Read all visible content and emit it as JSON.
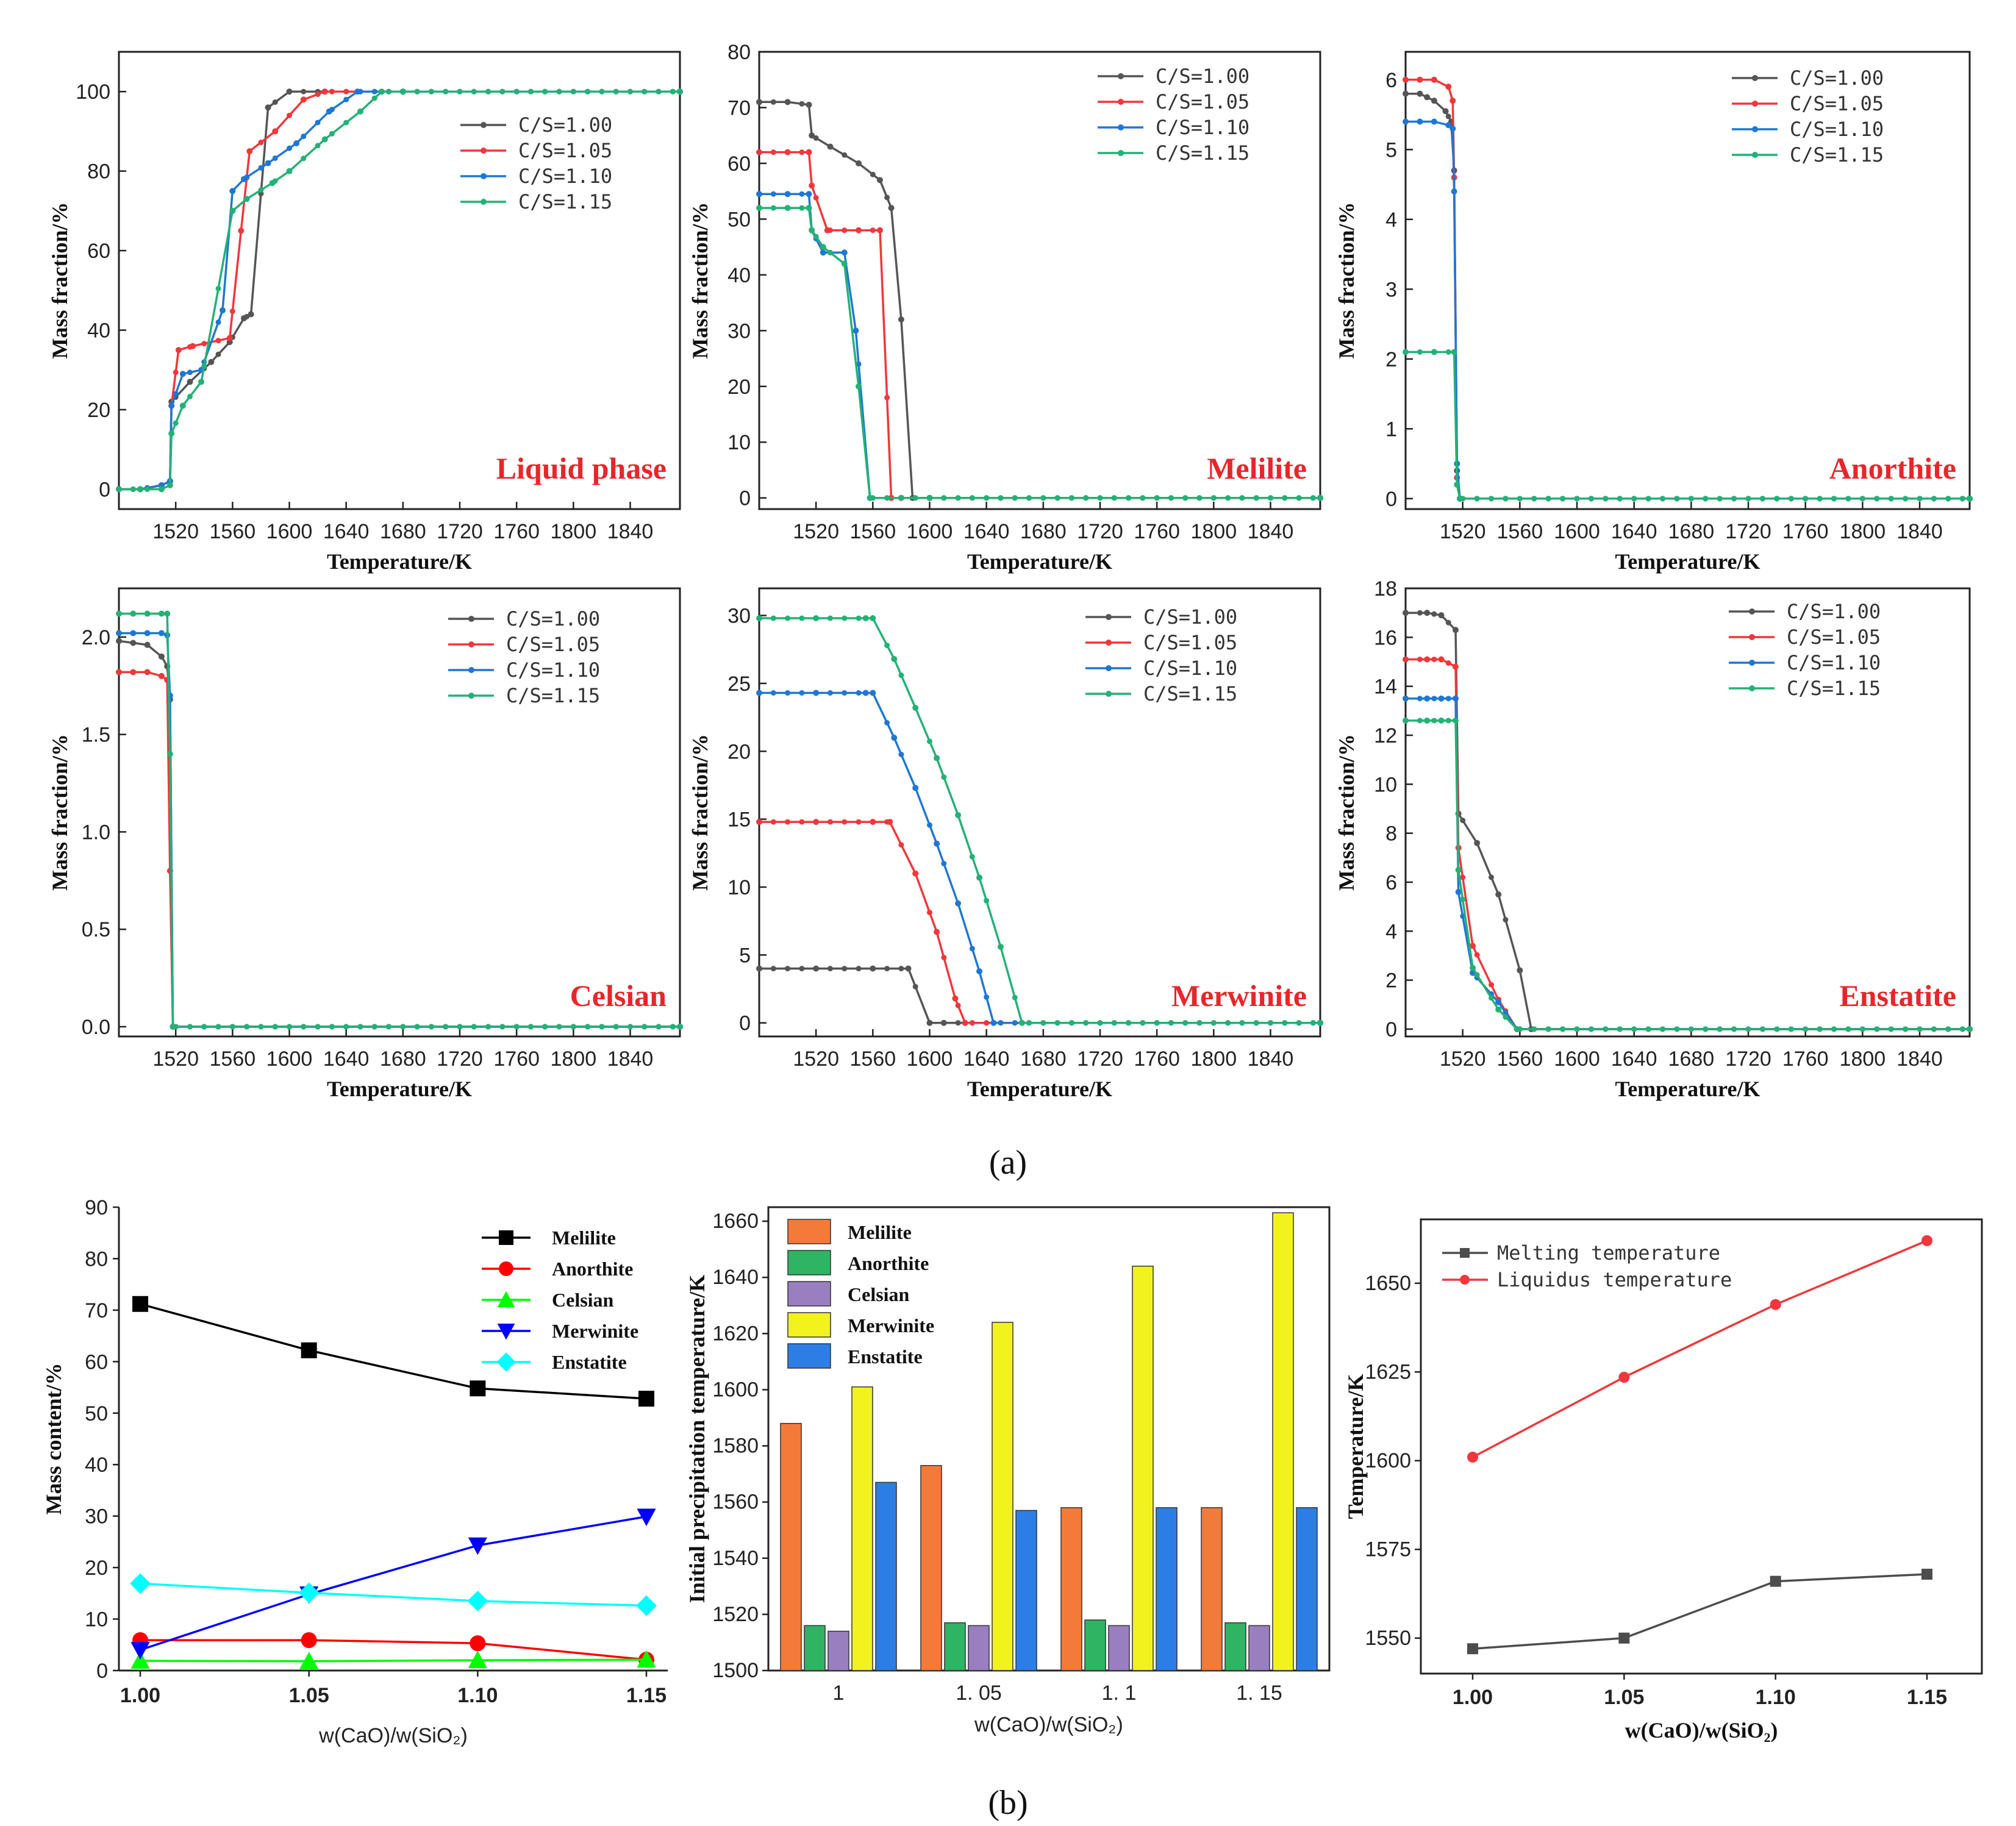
{
  "captions": {
    "a": "(a)",
    "b": "(b)"
  },
  "colors": {
    "s1": "#555555",
    "s2": "#f0373b",
    "s3": "#1f77d4",
    "s4": "#23b176"
  },
  "chart_data": [
    {
      "id": "liquid",
      "type": "line",
      "label": "Liquid phase",
      "xlabel": "Temperature/K",
      "ylabel": "Mass fraction/%",
      "xlim": [
        1480,
        1875
      ],
      "ylim": [
        -5,
        110
      ],
      "xticks": [
        "1520",
        "1560",
        "1600",
        "1640",
        "1680",
        "1720",
        "1760",
        "1800",
        "1840"
      ],
      "yticks": [
        "0",
        "20",
        "40",
        "60",
        "80",
        "100"
      ],
      "series": [
        {
          "name": "C/S=1.00",
          "x": [
            1480,
            1495,
            1510,
            1516,
            1517,
            1530,
            1545,
            1558,
            1568,
            1573,
            1585,
            1600,
            1625,
            1680,
            1875
          ],
          "y": [
            0,
            0,
            1,
            2,
            22,
            27,
            32,
            37,
            43,
            44,
            96,
            100,
            100,
            100,
            100
          ]
        },
        {
          "name": "C/S=1.05",
          "x": [
            1480,
            1495,
            1510,
            1516,
            1517,
            1522,
            1532,
            1558,
            1566,
            1572,
            1590,
            1610,
            1625,
            1680,
            1875
          ],
          "y": [
            0,
            0,
            1,
            2,
            21,
            35,
            36,
            38,
            65,
            85,
            90,
            98,
            100,
            100,
            100
          ]
        },
        {
          "name": "C/S=1.10",
          "x": [
            1480,
            1495,
            1510,
            1516,
            1517,
            1525,
            1538,
            1553,
            1560,
            1568,
            1585,
            1605,
            1628,
            1648,
            1680,
            1875
          ],
          "y": [
            0,
            0,
            1,
            2,
            21,
            29,
            30,
            45,
            75,
            78,
            82,
            87,
            95,
            100,
            100,
            100
          ]
        },
        {
          "name": "C/S=1.15",
          "x": [
            1480,
            1495,
            1510,
            1516,
            1517,
            1525,
            1538,
            1560,
            1570,
            1588,
            1600,
            1625,
            1650,
            1665,
            1680,
            1875
          ],
          "y": [
            0,
            0,
            0,
            1,
            14,
            21,
            27,
            70,
            73,
            77,
            80,
            88,
            95,
            100,
            100,
            100
          ]
        }
      ]
    },
    {
      "id": "melilite",
      "type": "line",
      "label": "Melilite",
      "xlabel": "Temperature/K",
      "ylabel": "Mass fraction/%",
      "xlim": [
        1480,
        1875
      ],
      "ylim": [
        -2,
        80
      ],
      "xticks": [
        "1520",
        "1560",
        "1600",
        "1640",
        "1680",
        "1720",
        "1760",
        "1800",
        "1840"
      ],
      "yticks": [
        "0",
        "10",
        "20",
        "30",
        "40",
        "50",
        "60",
        "70",
        "80"
      ],
      "series": [
        {
          "name": "C/S=1.00",
          "x": [
            1480,
            1500,
            1515,
            1517,
            1530,
            1550,
            1565,
            1573,
            1580,
            1588,
            1600,
            1875
          ],
          "y": [
            71,
            71,
            70.5,
            65,
            63,
            60,
            57,
            52,
            32,
            0,
            0,
            0
          ]
        },
        {
          "name": "C/S=1.05",
          "x": [
            1480,
            1500,
            1515,
            1517,
            1528,
            1550,
            1565,
            1573,
            1580,
            1875
          ],
          "y": [
            62,
            62,
            62,
            56,
            48,
            48,
            48,
            0,
            0,
            0
          ]
        },
        {
          "name": "C/S=1.10",
          "x": [
            1480,
            1500,
            1515,
            1517,
            1525,
            1540,
            1548,
            1558,
            1875
          ],
          "y": [
            54.5,
            54.5,
            54.5,
            48,
            44,
            44,
            30,
            0,
            0
          ]
        },
        {
          "name": "C/S=1.15",
          "x": [
            1480,
            1500,
            1515,
            1517,
            1525,
            1540,
            1550,
            1558,
            1875
          ],
          "y": [
            52,
            52,
            52,
            48,
            45,
            42,
            20,
            0,
            0
          ]
        }
      ]
    },
    {
      "id": "anorthite",
      "type": "line",
      "label": "Anorthite",
      "xlabel": "Temperature/K",
      "ylabel": "Mass fraction/%",
      "xlim": [
        1480,
        1875
      ],
      "ylim": [
        -0.15,
        6.4
      ],
      "xticks": [
        "1520",
        "1560",
        "1600",
        "1640",
        "1680",
        "1720",
        "1760",
        "1800",
        "1840"
      ],
      "yticks": [
        "0",
        "1",
        "2",
        "3",
        "4",
        "5",
        "6"
      ],
      "series": [
        {
          "name": "C/S=1.00",
          "x": [
            1480,
            1490,
            1495,
            1500,
            1508,
            1512,
            1514,
            1516,
            1518,
            1875
          ],
          "y": [
            5.8,
            5.8,
            5.75,
            5.7,
            5.55,
            5.4,
            4.7,
            0.4,
            0,
            0
          ]
        },
        {
          "name": "C/S=1.05",
          "x": [
            1480,
            1490,
            1500,
            1510,
            1513,
            1514,
            1516,
            1518,
            1875
          ],
          "y": [
            6,
            6,
            6,
            5.9,
            5.7,
            4.6,
            0.3,
            0,
            0
          ]
        },
        {
          "name": "C/S=1.10",
          "x": [
            1480,
            1490,
            1500,
            1510,
            1513,
            1514,
            1516,
            1518,
            1875
          ],
          "y": [
            5.4,
            5.4,
            5.4,
            5.35,
            5.3,
            4.4,
            0.5,
            0,
            0
          ]
        },
        {
          "name": "C/S=1.15",
          "x": [
            1480,
            1500,
            1514,
            1516,
            1518,
            1875
          ],
          "y": [
            2.1,
            2.1,
            2.1,
            0.2,
            0,
            0
          ]
        }
      ]
    },
    {
      "id": "celsian",
      "type": "line",
      "label": "Celsian",
      "xlabel": "Temperature/K",
      "ylabel": "Mass fraction/%",
      "xlim": [
        1480,
        1875
      ],
      "ylim": [
        -0.05,
        2.25
      ],
      "xticks": [
        "1520",
        "1560",
        "1600",
        "1640",
        "1680",
        "1720",
        "1760",
        "1800",
        "1840"
      ],
      "yticks": [
        "0.0",
        "0.5",
        "1.0",
        "1.5",
        "2.0"
      ],
      "series": [
        {
          "name": "C/S=1.00",
          "x": [
            1480,
            1490,
            1500,
            1510,
            1514,
            1516,
            1518,
            1875
          ],
          "y": [
            1.98,
            1.97,
            1.96,
            1.9,
            1.85,
            1.68,
            0,
            0
          ]
        },
        {
          "name": "C/S=1.05",
          "x": [
            1480,
            1490,
            1500,
            1510,
            1514,
            1516,
            1518,
            1875
          ],
          "y": [
            1.82,
            1.82,
            1.82,
            1.8,
            1.78,
            0.8,
            0,
            0
          ]
        },
        {
          "name": "C/S=1.10",
          "x": [
            1480,
            1490,
            1500,
            1510,
            1514,
            1516,
            1518,
            1875
          ],
          "y": [
            2.02,
            2.02,
            2.02,
            2.02,
            2.01,
            1.7,
            0,
            0
          ]
        },
        {
          "name": "C/S=1.15",
          "x": [
            1480,
            1490,
            1500,
            1510,
            1514,
            1516,
            1518,
            1875
          ],
          "y": [
            2.12,
            2.12,
            2.12,
            2.12,
            2.12,
            1.4,
            0,
            0
          ]
        }
      ]
    },
    {
      "id": "merwinite",
      "type": "line",
      "label": "Merwinite",
      "xlabel": "Temperature/K",
      "ylabel": "Mass fraction/%",
      "xlim": [
        1480,
        1875
      ],
      "ylim": [
        -1,
        32
      ],
      "xticks": [
        "1520",
        "1560",
        "1600",
        "1640",
        "1680",
        "1720",
        "1760",
        "1800",
        "1840"
      ],
      "yticks": [
        "0",
        "5",
        "10",
        "15",
        "20",
        "25",
        "30"
      ],
      "series": [
        {
          "name": "C/S=1.00",
          "x": [
            1480,
            1520,
            1560,
            1585,
            1600,
            1610,
            1875
          ],
          "y": [
            4,
            4,
            4,
            4,
            0,
            0,
            0
          ]
        },
        {
          "name": "C/S=1.05",
          "x": [
            1480,
            1520,
            1560,
            1572,
            1590,
            1605,
            1618,
            1625,
            1875
          ],
          "y": [
            14.8,
            14.8,
            14.8,
            14.8,
            11,
            6.7,
            1.8,
            0,
            0
          ]
        },
        {
          "name": "C/S=1.10",
          "x": [
            1480,
            1520,
            1555,
            1560,
            1575,
            1590,
            1605,
            1620,
            1635,
            1645,
            1875
          ],
          "y": [
            24.3,
            24.3,
            24.3,
            24.3,
            21,
            17.3,
            13.2,
            8.8,
            3.8,
            0,
            0
          ]
        },
        {
          "name": "C/S=1.15",
          "x": [
            1480,
            1520,
            1555,
            1560,
            1575,
            1590,
            1605,
            1620,
            1635,
            1650,
            1665,
            1875
          ],
          "y": [
            29.8,
            29.8,
            29.8,
            29.8,
            26.8,
            23.2,
            19.5,
            15.3,
            10.7,
            5.6,
            0,
            0
          ]
        }
      ]
    },
    {
      "id": "enstatite",
      "type": "line",
      "label": "Enstatite",
      "xlabel": "Temperature/K",
      "ylabel": "Mass fraction/%",
      "xlim": [
        1480,
        1875
      ],
      "ylim": [
        -0.3,
        18
      ],
      "xticks": [
        "1520",
        "1560",
        "1600",
        "1640",
        "1680",
        "1720",
        "1760",
        "1800",
        "1840"
      ],
      "yticks": [
        "0",
        "2",
        "4",
        "6",
        "8",
        "10",
        "12",
        "14",
        "16",
        "18"
      ],
      "series": [
        {
          "name": "C/S=1.00",
          "x": [
            1480,
            1495,
            1505,
            1515,
            1517,
            1530,
            1545,
            1560,
            1568,
            1875
          ],
          "y": [
            17,
            17,
            16.9,
            16.3,
            8.8,
            7.6,
            5.5,
            2.4,
            0,
            0
          ]
        },
        {
          "name": "C/S=1.05",
          "x": [
            1480,
            1495,
            1505,
            1515,
            1517,
            1527,
            1545,
            1558,
            1875
          ],
          "y": [
            15.1,
            15.1,
            15.1,
            14.8,
            7.4,
            3.4,
            1.2,
            0,
            0
          ]
        },
        {
          "name": "C/S=1.10",
          "x": [
            1480,
            1495,
            1505,
            1515,
            1517,
            1527,
            1545,
            1558,
            1875
          ],
          "y": [
            13.5,
            13.5,
            13.5,
            13.5,
            5.6,
            2.3,
            1.1,
            0,
            0
          ]
        },
        {
          "name": "C/S=1.15",
          "x": [
            1480,
            1495,
            1505,
            1515,
            1517,
            1527,
            1545,
            1558,
            1875
          ],
          "y": [
            12.6,
            12.6,
            12.6,
            12.6,
            6.5,
            2.5,
            0.8,
            0,
            0
          ]
        }
      ]
    },
    {
      "id": "mass_content",
      "type": "line",
      "xlabel": "w(CaO)/w(SiO₂)",
      "ylabel": "Mass content/%",
      "x": [
        1.0,
        1.05,
        1.1,
        1.15
      ],
      "xticks": [
        "1.00",
        "1.05",
        "1.10",
        "1.15"
      ],
      "ylim": [
        0,
        90
      ],
      "yticks": [
        "0",
        "10",
        "20",
        "30",
        "40",
        "50",
        "60",
        "70",
        "80",
        "90"
      ],
      "series": [
        {
          "name": "Melilite",
          "marker": "square",
          "color": "#000000",
          "values": [
            71.2,
            62.2,
            54.8,
            52.8
          ]
        },
        {
          "name": "Anorthite",
          "marker": "circle",
          "color": "#ff0000",
          "values": [
            5.9,
            5.9,
            5.3,
            2.1
          ]
        },
        {
          "name": "Celsian",
          "marker": "triangle-up",
          "color": "#00ff00",
          "values": [
            1.9,
            1.8,
            2.0,
            2.1
          ]
        },
        {
          "name": "Merwinite",
          "marker": "triangle-down",
          "color": "#0000ff",
          "values": [
            4.0,
            14.8,
            24.3,
            29.9
          ]
        },
        {
          "name": "Enstatite",
          "marker": "diamond",
          "color": "#00ffff",
          "values": [
            16.9,
            15.1,
            13.5,
            12.6
          ]
        }
      ]
    },
    {
      "id": "precipitation",
      "type": "bar",
      "xlabel": "w(CaO)/w(SiO₂)",
      "ylabel": "Initial precipitation temperature/K",
      "categories": [
        "1",
        "1. 05",
        "1. 1",
        "1. 15"
      ],
      "ylim": [
        1500,
        1665
      ],
      "yticks": [
        "1500",
        "1520",
        "1540",
        "1560",
        "1580",
        "1600",
        "1620",
        "1640",
        "1660"
      ],
      "series": [
        {
          "name": "Melilite",
          "color": "#f47a3a",
          "values": [
            1588,
            1573,
            1558,
            1558
          ]
        },
        {
          "name": "Anorthite",
          "color": "#2fb463",
          "values": [
            1516,
            1517,
            1518,
            1517
          ]
        },
        {
          "name": "Celsian",
          "color": "#9a7fc0",
          "values": [
            1514,
            1516,
            1516,
            1516
          ]
        },
        {
          "name": "Merwinite",
          "color": "#f2f21e",
          "values": [
            1601,
            1624,
            1644,
            1663
          ]
        },
        {
          "name": "Enstatite",
          "color": "#2c7ee6",
          "values": [
            1567,
            1557,
            1558,
            1558
          ]
        }
      ]
    },
    {
      "id": "melting",
      "type": "line",
      "xlabel": "w(CaO)/w(SiO₂)",
      "ylabel": "Temperature/K",
      "x": [
        1.0,
        1.05,
        1.1,
        1.15
      ],
      "xticks": [
        "1.00",
        "1.05",
        "1.10",
        "1.15"
      ],
      "ylim": [
        1540,
        1668
      ],
      "yticks": [
        "1550",
        "1575",
        "1600",
        "1625",
        "1650"
      ],
      "series": [
        {
          "name": "Melting temperature",
          "marker": "square",
          "color": "#4d4d4d",
          "values": [
            1547,
            1550,
            1566,
            1568
          ]
        },
        {
          "name": "Liquidus temperature",
          "marker": "circle",
          "color": "#f0373b",
          "values": [
            1601,
            1623.5,
            1644,
            1662
          ]
        }
      ]
    }
  ]
}
